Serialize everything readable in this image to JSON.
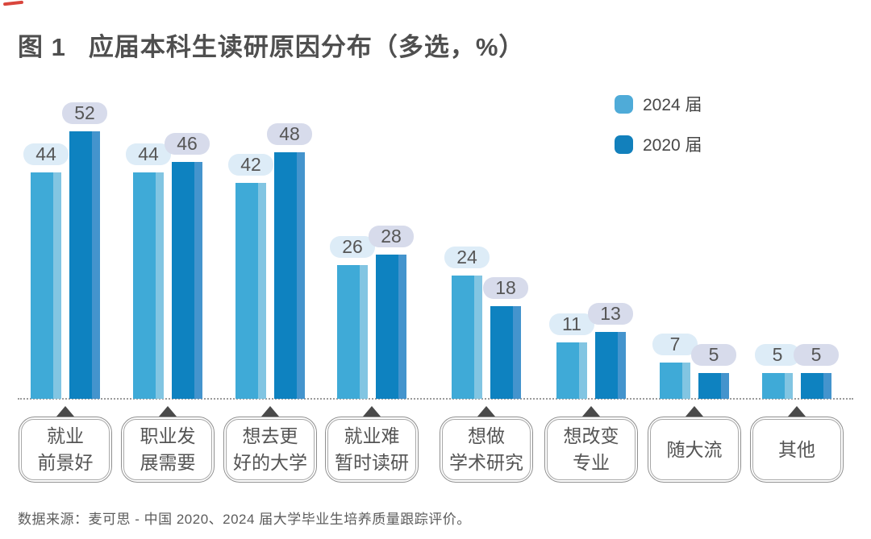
{
  "title": {
    "prefix": "图 1",
    "text": "应届本科生读研原因分布（多选，%）"
  },
  "legend": [
    {
      "label": "2024 届",
      "color": "#4fabd8"
    },
    {
      "label": "2020 届",
      "color": "#1280bc"
    }
  ],
  "chart_data": {
    "type": "bar",
    "title": "应届本科生读研原因分布（多选，%）",
    "xlabel": "",
    "ylabel": "",
    "unit": "%",
    "ylim": [
      0,
      55
    ],
    "grid": false,
    "baseline_style": "dotted",
    "legend_position": "top-right",
    "categories": [
      "就业前景好",
      "职业发展需要",
      "想去更好的大学",
      "就业难暂时读研",
      "想做学术研究",
      "想改变专业",
      "随大流",
      "其他"
    ],
    "category_lines": [
      [
        "就业",
        "前景好"
      ],
      [
        "职业发",
        "展需要"
      ],
      [
        "想去更",
        "好的大学"
      ],
      [
        "就业难",
        "暂时读研"
      ],
      [
        "想做",
        "学术研究"
      ],
      [
        "想改变",
        "专业"
      ],
      [
        "随大流"
      ],
      [
        "其他"
      ]
    ],
    "series": [
      {
        "name": "2024 届",
        "values": [
          44,
          44,
          42,
          26,
          24,
          11,
          7,
          5
        ],
        "bar_color": "#3faad7",
        "bar_edge_color": "#82c5e2",
        "label_bg_color": "#ddecf7"
      },
      {
        "name": "2020 届",
        "values": [
          52,
          46,
          48,
          28,
          18,
          13,
          5,
          5
        ],
        "bar_color": "#0e82c0",
        "bar_edge_color": "#4494cd",
        "label_bg_color": "#d7dbeb"
      }
    ]
  },
  "footer": {
    "source": "数据来源：麦可思 - 中国 2020、2024 届大学毕业生培养质量跟踪评价。"
  }
}
